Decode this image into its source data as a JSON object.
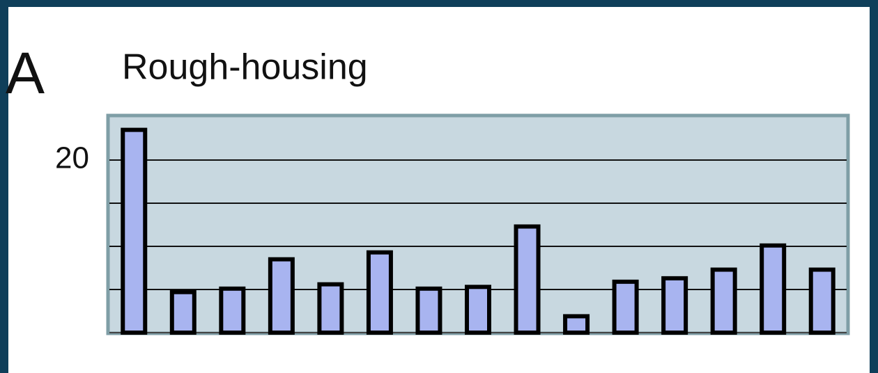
{
  "chart_data": {
    "type": "bar",
    "panel_label": "A",
    "title": "Rough-housing",
    "categories": [
      null,
      null,
      null,
      null,
      null,
      null,
      null,
      null,
      null,
      null,
      null,
      null,
      null,
      null,
      null
    ],
    "values": [
      23.5,
      4.7,
      5.1,
      8.5,
      5.6,
      9.3,
      5.1,
      5.3,
      12.3,
      1.9,
      5.9,
      6.3,
      7.3,
      10.1,
      7.3
    ],
    "color": "#a8b4f0",
    "ylim": [
      0,
      25
    ],
    "yticks": [
      {
        "value": 5,
        "label": null
      },
      {
        "value": 10,
        "label": null
      },
      {
        "value": 15,
        "label": null
      },
      20
    ],
    "grid": true
  }
}
